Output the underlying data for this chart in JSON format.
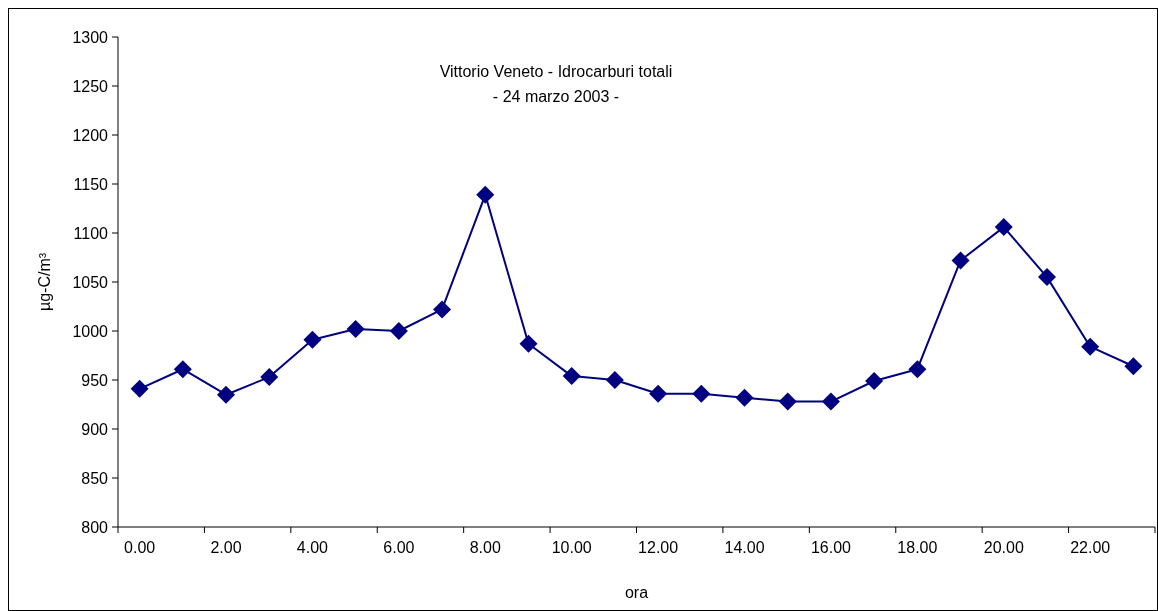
{
  "chart_data": {
    "type": "line",
    "title": "Vittorio Veneto - Idrocarburi totali",
    "subtitle": "- 24 marzo 2003 -",
    "xlabel": "ora",
    "ylabel": "µg-C/m³",
    "categories": [
      "0.00",
      null,
      "2.00",
      null,
      "4.00",
      null,
      "6.00",
      null,
      "8.00",
      null,
      "10.00",
      null,
      "12.00",
      null,
      "14.00",
      null,
      "16.00",
      null,
      "18.00",
      null,
      "20.00",
      null,
      "22.00",
      null
    ],
    "series": [
      {
        "color": "#000080",
        "values": [
          941,
          961,
          935,
          953,
          991,
          1002,
          1000,
          1022,
          1139,
          987,
          954,
          950,
          936,
          936,
          932,
          928,
          928,
          949,
          961,
          1072,
          1106,
          1055,
          984,
          964
        ]
      }
    ],
    "ylim": [
      800,
      1300
    ],
    "yticks": [
      800,
      850,
      900,
      950,
      1000,
      1050,
      1100,
      1150,
      1200,
      1250,
      1300
    ],
    "grid": false,
    "marker": "diamond",
    "line_style": "solid"
  }
}
